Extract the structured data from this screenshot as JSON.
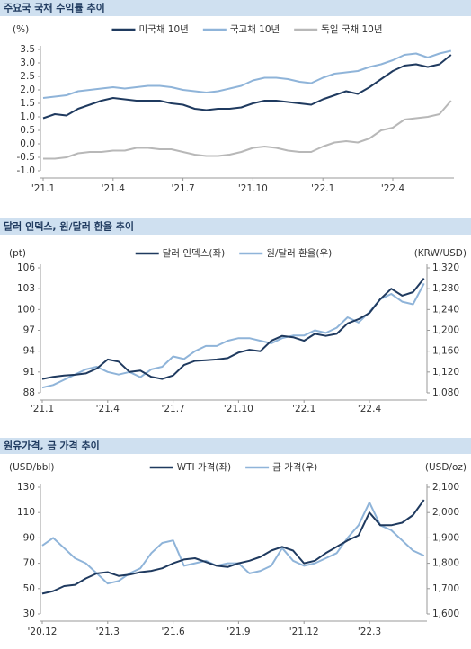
{
  "chart_data": [
    {
      "type": "line",
      "title": "주요국 국채 수익률 추이",
      "y_label": "(%)",
      "legend": "top",
      "grid": false,
      "categories": [
        "'21.1",
        null,
        null,
        null,
        null,
        null,
        "'21.4",
        null,
        null,
        null,
        null,
        null,
        "'21.7",
        null,
        null,
        null,
        null,
        null,
        "'21.10",
        null,
        null,
        null,
        null,
        null,
        "'22.1",
        null,
        null,
        null,
        null,
        null,
        "'22.4",
        null,
        null,
        null,
        null,
        null
      ],
      "ylim": [
        -1.0,
        3.5
      ],
      "yticks": [
        3.5,
        {
          "value": 3,
          "label": "3.0"
        },
        2.5,
        {
          "value": 2,
          "label": "2.0"
        },
        1.5,
        {
          "value": 1,
          "label": "1.0"
        },
        0.5,
        {
          "value": 0,
          "label": "0.0"
        },
        -0.5,
        {
          "value": -1,
          "label": "-1.0"
        }
      ],
      "series": [
        {
          "name": "미국채 10년",
          "color": "#1f3a5f",
          "values": [
            0.95,
            1.1,
            1.05,
            1.3,
            1.45,
            1.6,
            1.7,
            1.65,
            1.6,
            1.6,
            1.6,
            1.5,
            1.45,
            1.3,
            1.25,
            1.3,
            1.3,
            1.35,
            1.5,
            1.6,
            1.6,
            1.55,
            1.5,
            1.45,
            1.65,
            1.8,
            1.95,
            1.85,
            2.1,
            2.4,
            2.7,
            2.9,
            2.95,
            2.85,
            2.95,
            3.3
          ]
        },
        {
          "name": "국고채 10년",
          "color": "#8fb4d9",
          "values": [
            1.7,
            1.75,
            1.8,
            1.95,
            2.0,
            2.05,
            2.1,
            2.05,
            2.1,
            2.15,
            2.15,
            2.1,
            2.0,
            1.95,
            1.9,
            1.95,
            2.05,
            2.15,
            2.35,
            2.45,
            2.45,
            2.4,
            2.3,
            2.25,
            2.45,
            2.6,
            2.65,
            2.7,
            2.85,
            2.95,
            3.1,
            3.3,
            3.35,
            3.2,
            3.35,
            3.45
          ]
        },
        {
          "name": "독일 국채 10년",
          "color": "#b8b8b8",
          "values": [
            -0.55,
            -0.55,
            -0.5,
            -0.35,
            -0.3,
            -0.3,
            -0.25,
            -0.25,
            -0.15,
            -0.15,
            -0.2,
            -0.2,
            -0.3,
            -0.4,
            -0.45,
            -0.45,
            -0.4,
            -0.3,
            -0.15,
            -0.1,
            -0.15,
            -0.25,
            -0.3,
            -0.3,
            -0.1,
            0.05,
            0.1,
            0.05,
            0.2,
            0.5,
            0.6,
            0.9,
            0.95,
            1.0,
            1.1,
            1.6
          ]
        }
      ]
    },
    {
      "type": "line",
      "title": "달러 인덱스, 원/달러 환율 추이",
      "y_label": "(pt)",
      "y2_label": "(KRW/USD)",
      "legend": "top",
      "grid": false,
      "categories": [
        "'21.1",
        null,
        null,
        null,
        null,
        null,
        "'21.4",
        null,
        null,
        null,
        null,
        null,
        "'21.7",
        null,
        null,
        null,
        null,
        null,
        "'21.10",
        null,
        null,
        null,
        null,
        null,
        "'22.1",
        null,
        null,
        null,
        null,
        null,
        "'22.4",
        null,
        null,
        null,
        null,
        null
      ],
      "ylim": [
        88,
        106
      ],
      "yticks": [
        106,
        103,
        100,
        97,
        94,
        91,
        88
      ],
      "y2lim": [
        1080,
        1320
      ],
      "y2ticks": [
        {
          "value": 1320,
          "label": "1,320"
        },
        {
          "value": 1280,
          "label": "1,280"
        },
        {
          "value": 1240,
          "label": "1,240"
        },
        {
          "value": 1200,
          "label": "1,200"
        },
        {
          "value": 1160,
          "label": "1,160"
        },
        {
          "value": 1120,
          "label": "1,120"
        },
        {
          "value": 1080,
          "label": "1,080"
        }
      ],
      "series": [
        {
          "name": "달러 인덱스(좌)",
          "color": "#1f3a5f",
          "values": [
            90.0,
            90.3,
            90.5,
            90.6,
            90.8,
            91.5,
            92.8,
            92.5,
            91.0,
            91.2,
            90.3,
            90.0,
            90.5,
            92.0,
            92.6,
            92.7,
            92.8,
            93.0,
            93.8,
            94.2,
            94.0,
            95.5,
            96.2,
            96.0,
            95.5,
            96.5,
            96.2,
            96.5,
            98.0,
            98.6,
            99.5,
            101.5,
            103.0,
            102.0,
            102.5,
            104.5
          ]
        },
        {
          "name": "원/달러 환율(우)",
          "color": "#8fb4d9",
          "axis": "y2",
          "values": [
            1090,
            1095,
            1105,
            1115,
            1125,
            1130,
            1120,
            1115,
            1120,
            1110,
            1125,
            1130,
            1150,
            1145,
            1160,
            1170,
            1170,
            1180,
            1185,
            1185,
            1180,
            1175,
            1185,
            1190,
            1190,
            1200,
            1195,
            1205,
            1225,
            1215,
            1235,
            1260,
            1270,
            1255,
            1250,
            1290
          ]
        }
      ]
    },
    {
      "type": "line",
      "title": "원유가격, 금 가격 추이",
      "y_label": "(USD/bbl)",
      "y2_label": "(USD/oz)",
      "legend": "top",
      "grid": false,
      "categories": [
        "'20.12",
        null,
        null,
        null,
        null,
        null,
        "'21.3",
        null,
        null,
        null,
        null,
        null,
        "'21.6",
        null,
        null,
        null,
        null,
        null,
        "'21.9",
        null,
        null,
        null,
        null,
        null,
        "'21.12",
        null,
        null,
        null,
        null,
        null,
        "'22.3",
        null,
        null,
        null,
        null,
        null
      ],
      "ylim": [
        30,
        130
      ],
      "yticks": [
        130,
        110,
        90,
        70,
        50,
        30
      ],
      "y2lim": [
        1600,
        2100
      ],
      "y2ticks": [
        {
          "value": 2100,
          "label": "2,100"
        },
        {
          "value": 2000,
          "label": "2,000"
        },
        {
          "value": 1900,
          "label": "1,900"
        },
        {
          "value": 1800,
          "label": "1,800"
        },
        {
          "value": 1700,
          "label": "1,700"
        },
        {
          "value": 1600,
          "label": "1,600"
        }
      ],
      "series": [
        {
          "name": "WTI 가격(좌)",
          "color": "#1f3a5f",
          "values": [
            46,
            48,
            52,
            53,
            58,
            62,
            63,
            60,
            61,
            63,
            64,
            66,
            70,
            73,
            74,
            71,
            68,
            67,
            70,
            72,
            75,
            80,
            83,
            80,
            70,
            72,
            78,
            83,
            88,
            92,
            110,
            100,
            100,
            102,
            108,
            120
          ]
        },
        {
          "name": "금 가격(우)",
          "color": "#8fb4d9",
          "axis": "y2",
          "values": [
            1870,
            1900,
            1860,
            1820,
            1800,
            1760,
            1720,
            1730,
            1760,
            1780,
            1840,
            1880,
            1890,
            1790,
            1800,
            1810,
            1790,
            1800,
            1800,
            1760,
            1770,
            1790,
            1860,
            1810,
            1790,
            1800,
            1820,
            1840,
            1900,
            1950,
            2040,
            1950,
            1930,
            1890,
            1850,
            1830
          ]
        }
      ]
    }
  ]
}
